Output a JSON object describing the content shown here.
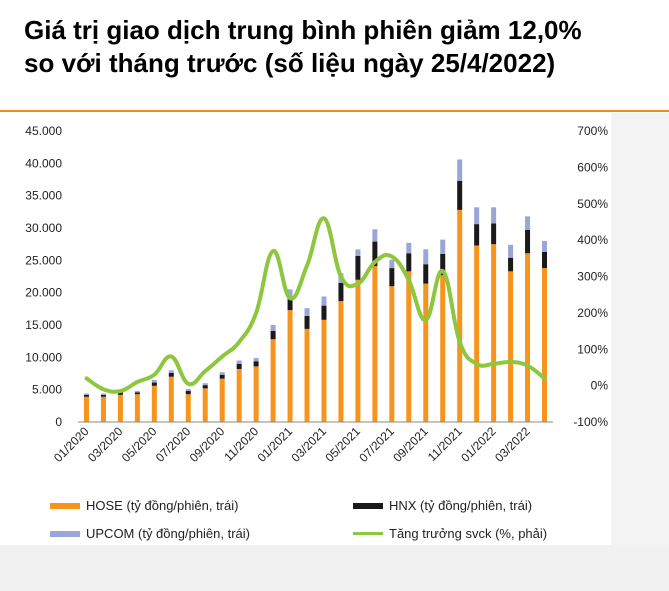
{
  "header": {
    "title_line1": "Giá trị giao dịch trung bình phiên giảm 12,0%",
    "title_line2": "so với tháng trước (số liệu ngày 25/4/2022)"
  },
  "colors": {
    "hose": "#f7941d",
    "hnx": "#1a1a1a",
    "upcom": "#9aa6d6",
    "growth": "#8dc63f",
    "accent_rule": "#f08a1f"
  },
  "chart_data": {
    "type": "bar",
    "stacked": true,
    "categories": [
      "01/2020",
      "02/2020",
      "03/2020",
      "04/2020",
      "05/2020",
      "06/2020",
      "07/2020",
      "08/2020",
      "09/2020",
      "10/2020",
      "11/2020",
      "12/2020",
      "01/2021",
      "02/2021",
      "03/2021",
      "04/2021",
      "05/2021",
      "06/2021",
      "07/2021",
      "08/2021",
      "09/2021",
      "10/2021",
      "11/2021",
      "12/2021",
      "01/2022",
      "02/2022",
      "03/2022",
      "04/2022"
    ],
    "tick_labels": [
      "01/2020",
      "03/2020",
      "05/2020",
      "07/2020",
      "09/2020",
      "11/2020",
      "01/2021",
      "03/2021",
      "05/2021",
      "07/2021",
      "09/2021",
      "11/2021",
      "01/2022",
      "03/2022"
    ],
    "left_axis": {
      "min": 0,
      "max": 45000,
      "ticks": [
        "0",
        "5.000",
        "10.000",
        "15.000",
        "20.000",
        "25.000",
        "30.000",
        "35.000",
        "40.000",
        "45.000"
      ]
    },
    "right_axis": {
      "min": -100,
      "max": 700,
      "ticks": [
        "-100%",
        "0%",
        "100%",
        "200%",
        "300%",
        "400%",
        "500%",
        "600%",
        "700%"
      ]
    },
    "series": [
      {
        "name": "HOSE (tỷ đồng/phiên, trái)",
        "axis": "left",
        "values": [
          3900,
          3900,
          4200,
          4300,
          5600,
          7000,
          4300,
          5200,
          6700,
          8200,
          8600,
          12800,
          17300,
          14400,
          15800,
          18700,
          22000,
          24100,
          21000,
          23300,
          21400,
          22700,
          32800,
          27300,
          27500,
          23300,
          26100,
          23800
        ]
      },
      {
        "name": "HNX (tỷ đồng/phiên, trái)",
        "axis": "left",
        "values": [
          300,
          300,
          400,
          300,
          500,
          600,
          500,
          500,
          600,
          800,
          800,
          1300,
          2000,
          2000,
          2200,
          2800,
          3700,
          3800,
          2800,
          2800,
          3000,
          3300,
          4500,
          3300,
          3200,
          2100,
          3600,
          2500
        ]
      },
      {
        "name": "UPCOM (tỷ đồng/phiên, trái)",
        "axis": "left",
        "values": [
          200,
          200,
          200,
          200,
          400,
          400,
          300,
          300,
          400,
          500,
          500,
          900,
          1200,
          1200,
          1400,
          1500,
          1000,
          1900,
          1300,
          1600,
          2300,
          2200,
          3300,
          2600,
          2500,
          2000,
          2100,
          1700
        ]
      },
      {
        "name": "Tăng trưởng svck (%, phải)",
        "axis": "right",
        "type": "line",
        "values": [
          20,
          -10,
          -15,
          10,
          30,
          80,
          5,
          40,
          80,
          120,
          200,
          370,
          240,
          330,
          460,
          300,
          280,
          340,
          355,
          290,
          180,
          315,
          120,
          60,
          60,
          65,
          55,
          20
        ]
      }
    ],
    "legend": [
      {
        "label": "HOSE (tỷ đồng/phiên, trái)"
      },
      {
        "label": "HNX (tỷ đồng/phiên, trái)"
      },
      {
        "label": "UPCOM (tỷ đồng/phiên, trái)"
      },
      {
        "label": "Tăng trưởng svck (%, phải)"
      }
    ]
  }
}
